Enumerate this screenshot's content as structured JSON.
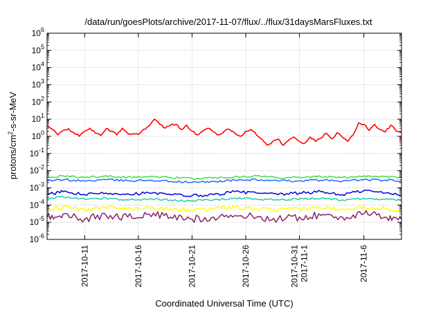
{
  "chart_data": {
    "type": "line",
    "title": "/data/run/goesPlots/archive/2017-11-07/flux/../flux/31daysMarsFluxes.txt",
    "xlabel": "Coordinated Universal Time (UTC)",
    "ylabel": {
      "prefix": "protons/cm",
      "exponent": "2",
      "suffix": "-s-sr-MeV"
    },
    "y_scale": "log",
    "ylim": [
      1e-06,
      1000000.0
    ],
    "xlim": [
      "2017-10-07T12:00",
      "2017-11-09T12:00"
    ],
    "grid": true,
    "legend": "none",
    "y_ticks": [
      {
        "value": 1e-06,
        "base": "10",
        "exp": "-6"
      },
      {
        "value": 1e-05,
        "base": "10",
        "exp": "-5"
      },
      {
        "value": 0.0001,
        "base": "10",
        "exp": "-4"
      },
      {
        "value": 0.001,
        "base": "10",
        "exp": "-3"
      },
      {
        "value": 0.01,
        "base": "10",
        "exp": "-2"
      },
      {
        "value": 0.1,
        "base": "10",
        "exp": "-1"
      },
      {
        "value": 1,
        "base": "10",
        "exp": "0"
      },
      {
        "value": 10.0,
        "base": "10",
        "exp": "1"
      },
      {
        "value": 100.0,
        "base": "10",
        "exp": "2"
      },
      {
        "value": 1000.0,
        "base": "10",
        "exp": "3"
      },
      {
        "value": 10000.0,
        "base": "10",
        "exp": "4"
      },
      {
        "value": 100000.0,
        "base": "10",
        "exp": "5"
      },
      {
        "value": 1000000.0,
        "base": "10",
        "exp": "6"
      }
    ],
    "x_ticks": [
      {
        "value": "2017-10-11",
        "lines": [
          "2017-10-11"
        ]
      },
      {
        "value": "2017-10-16",
        "lines": [
          "2017-10-16"
        ]
      },
      {
        "value": "2017-10-21",
        "lines": [
          "2017-10-21"
        ]
      },
      {
        "value": "2017-10-26",
        "lines": [
          "2017-10-26"
        ]
      },
      {
        "value": "2017-10-31",
        "lines": [
          "2017-10-31",
          "2017-11-1"
        ]
      },
      {
        "value": "2017-11-06",
        "lines": [
          "2017-11-6"
        ]
      }
    ],
    "series": [
      {
        "color": "#ff0000",
        "points": [
          [
            "2017-10-07T12:00",
            4.0
          ],
          [
            "2017-10-08T00:00",
            2.5
          ],
          [
            "2017-10-08T12:00",
            1.2
          ],
          [
            "2017-10-09T00:00",
            2.2
          ],
          [
            "2017-10-09T12:00",
            2.8
          ],
          [
            "2017-10-10T00:00",
            1.6
          ],
          [
            "2017-10-10T12:00",
            1.0
          ],
          [
            "2017-10-11T00:00",
            2.0
          ],
          [
            "2017-10-11T12:00",
            3.0
          ],
          [
            "2017-10-12T00:00",
            1.5
          ],
          [
            "2017-10-12T12:00",
            1.1
          ],
          [
            "2017-10-13T00:00",
            2.8
          ],
          [
            "2017-10-13T12:00",
            2.0
          ],
          [
            "2017-10-14T00:00",
            1.2
          ],
          [
            "2017-10-14T12:00",
            3.0
          ],
          [
            "2017-10-15T00:00",
            1.5
          ],
          [
            "2017-10-15T12:00",
            1.4
          ],
          [
            "2017-10-16T00:00",
            1.3
          ],
          [
            "2017-10-16T12:00",
            2.6
          ],
          [
            "2017-10-17T00:00",
            4.0
          ],
          [
            "2017-10-17T12:00",
            10.0
          ],
          [
            "2017-10-18T00:00",
            5.0
          ],
          [
            "2017-10-18T12:00",
            3.0
          ],
          [
            "2017-10-19T00:00",
            4.5
          ],
          [
            "2017-10-19T12:00",
            5.0
          ],
          [
            "2017-10-20T00:00",
            2.5
          ],
          [
            "2017-10-20T12:00",
            4.5
          ],
          [
            "2017-10-21T00:00",
            2.0
          ],
          [
            "2017-10-21T12:00",
            1.2
          ],
          [
            "2017-10-22T00:00",
            2.0
          ],
          [
            "2017-10-22T12:00",
            3.0
          ],
          [
            "2017-10-23T00:00",
            1.8
          ],
          [
            "2017-10-23T12:00",
            1.2
          ],
          [
            "2017-10-24T00:00",
            2.0
          ],
          [
            "2017-10-24T12:00",
            2.5
          ],
          [
            "2017-10-25T00:00",
            1.5
          ],
          [
            "2017-10-25T12:00",
            1.0
          ],
          [
            "2017-10-26T00:00",
            2.0
          ],
          [
            "2017-10-26T12:00",
            2.5
          ],
          [
            "2017-10-27T00:00",
            1.2
          ],
          [
            "2017-10-27T12:00",
            0.7
          ],
          [
            "2017-10-28T00:00",
            0.3
          ],
          [
            "2017-10-28T12:00",
            0.5
          ],
          [
            "2017-10-29T00:00",
            0.7
          ],
          [
            "2017-10-29T12:00",
            0.3
          ],
          [
            "2017-10-30T00:00",
            0.6
          ],
          [
            "2017-10-30T12:00",
            0.9
          ],
          [
            "2017-10-31T00:00",
            0.5
          ],
          [
            "2017-10-31T12:00",
            0.4
          ],
          [
            "2017-11-01T00:00",
            0.9
          ],
          [
            "2017-11-01T12:00",
            0.5
          ],
          [
            "2017-11-02T00:00",
            0.8
          ],
          [
            "2017-11-02T12:00",
            1.5
          ],
          [
            "2017-11-03T00:00",
            0.7
          ],
          [
            "2017-11-03T12:00",
            1.6
          ],
          [
            "2017-11-04T00:00",
            0.9
          ],
          [
            "2017-11-04T12:00",
            0.5
          ],
          [
            "2017-11-05T00:00",
            1.2
          ],
          [
            "2017-11-05T12:00",
            6.0
          ],
          [
            "2017-11-06T00:00",
            5.0
          ],
          [
            "2017-11-06T12:00",
            2.2
          ],
          [
            "2017-11-07T00:00",
            5.0
          ],
          [
            "2017-11-07T12:00",
            2.5
          ],
          [
            "2017-11-08T00:00",
            1.8
          ],
          [
            "2017-11-08T12:00",
            4.5
          ],
          [
            "2017-11-09T00:00",
            2.0
          ],
          [
            "2017-11-09T12:00",
            1.6
          ]
        ]
      },
      {
        "color": "#44dd44",
        "points": [
          [
            "2017-10-07T12:00",
            0.004
          ],
          [
            "2017-10-09T00:00",
            0.005
          ],
          [
            "2017-10-11T00:00",
            0.004
          ],
          [
            "2017-10-13T00:00",
            0.005
          ],
          [
            "2017-10-15T00:00",
            0.0042
          ],
          [
            "2017-10-17T00:00",
            0.0045
          ],
          [
            "2017-10-19T00:00",
            0.004
          ],
          [
            "2017-10-21T00:00",
            0.0035
          ],
          [
            "2017-10-23T00:00",
            0.0038
          ],
          [
            "2017-10-25T00:00",
            0.0045
          ],
          [
            "2017-10-27T00:00",
            0.005
          ],
          [
            "2017-10-29T00:00",
            0.004
          ],
          [
            "2017-10-31T00:00",
            0.0042
          ],
          [
            "2017-11-02T00:00",
            0.0045
          ],
          [
            "2017-11-04T00:00",
            0.004
          ],
          [
            "2017-11-06T00:00",
            0.005
          ],
          [
            "2017-11-08T00:00",
            0.0045
          ],
          [
            "2017-11-09T12:00",
            0.004
          ]
        ]
      },
      {
        "color": "#2266ff",
        "points": [
          [
            "2017-10-07T12:00",
            0.0025
          ],
          [
            "2017-10-09T00:00",
            0.003
          ],
          [
            "2017-10-11T00:00",
            0.0025
          ],
          [
            "2017-10-13T00:00",
            0.003
          ],
          [
            "2017-10-15T00:00",
            0.0026
          ],
          [
            "2017-10-17T00:00",
            0.0028
          ],
          [
            "2017-10-19T00:00",
            0.0024
          ],
          [
            "2017-10-21T00:00",
            0.0021
          ],
          [
            "2017-10-23T00:00",
            0.0023
          ],
          [
            "2017-10-25T00:00",
            0.0028
          ],
          [
            "2017-10-27T00:00",
            0.003
          ],
          [
            "2017-10-29T00:00",
            0.0025
          ],
          [
            "2017-10-31T00:00",
            0.0026
          ],
          [
            "2017-11-02T00:00",
            0.0028
          ],
          [
            "2017-11-04T00:00",
            0.0025
          ],
          [
            "2017-11-06T00:00",
            0.003
          ],
          [
            "2017-11-08T00:00",
            0.0028
          ],
          [
            "2017-11-09T12:00",
            0.0025
          ]
        ]
      },
      {
        "color": "#0000dd",
        "points": [
          [
            "2017-10-07T12:00",
            0.0004
          ],
          [
            "2017-10-09T00:00",
            0.0006
          ],
          [
            "2017-10-11T00:00",
            0.0004
          ],
          [
            "2017-10-13T00:00",
            0.0005
          ],
          [
            "2017-10-15T00:00",
            0.00045
          ],
          [
            "2017-10-17T00:00",
            0.0005
          ],
          [
            "2017-10-19T00:00",
            0.0004
          ],
          [
            "2017-10-21T00:00",
            0.00035
          ],
          [
            "2017-10-23T00:00",
            0.0004
          ],
          [
            "2017-10-25T00:00",
            0.0006
          ],
          [
            "2017-10-27T00:00",
            0.0005
          ],
          [
            "2017-10-29T00:00",
            0.0004
          ],
          [
            "2017-10-31T00:00",
            0.0005
          ],
          [
            "2017-11-02T00:00",
            0.0006
          ],
          [
            "2017-11-04T00:00",
            0.0004
          ],
          [
            "2017-11-06T00:00",
            0.0007
          ],
          [
            "2017-11-08T00:00",
            0.0005
          ],
          [
            "2017-11-09T12:00",
            0.0004
          ]
        ]
      },
      {
        "color": "#22ccaa",
        "points": [
          [
            "2017-10-07T12:00",
            0.00025
          ],
          [
            "2017-10-09T00:00",
            0.0003
          ],
          [
            "2017-10-11T00:00",
            0.00022
          ],
          [
            "2017-10-13T00:00",
            0.00025
          ],
          [
            "2017-10-15T00:00",
            0.0002
          ],
          [
            "2017-10-17T00:00",
            0.00022
          ],
          [
            "2017-10-19T00:00",
            0.0002
          ],
          [
            "2017-10-21T00:00",
            0.00018
          ],
          [
            "2017-10-23T00:00",
            0.0002
          ],
          [
            "2017-10-25T00:00",
            0.00025
          ],
          [
            "2017-10-27T00:00",
            0.00022
          ],
          [
            "2017-10-29T00:00",
            0.0002
          ],
          [
            "2017-10-31T00:00",
            0.00022
          ],
          [
            "2017-11-02T00:00",
            0.00025
          ],
          [
            "2017-11-04T00:00",
            0.0002
          ],
          [
            "2017-11-06T00:00",
            0.00025
          ],
          [
            "2017-11-08T00:00",
            0.00022
          ],
          [
            "2017-11-09T12:00",
            0.0002
          ]
        ]
      },
      {
        "color": "#ffff00",
        "points": [
          [
            "2017-10-07T12:00",
            6e-05
          ],
          [
            "2017-10-09T00:00",
            8e-05
          ],
          [
            "2017-10-11T00:00",
            5e-05
          ],
          [
            "2017-10-13T00:00",
            7e-05
          ],
          [
            "2017-10-15T00:00",
            6e-05
          ],
          [
            "2017-10-17T00:00",
            7e-05
          ],
          [
            "2017-10-19T00:00",
            6e-05
          ],
          [
            "2017-10-21T00:00",
            5e-05
          ],
          [
            "2017-10-23T00:00",
            6e-05
          ],
          [
            "2017-10-25T00:00",
            7e-05
          ],
          [
            "2017-10-27T00:00",
            6e-05
          ],
          [
            "2017-10-29T00:00",
            5e-05
          ],
          [
            "2017-10-31T00:00",
            6e-05
          ],
          [
            "2017-11-02T00:00",
            7e-05
          ],
          [
            "2017-11-04T00:00",
            6e-05
          ],
          [
            "2017-11-06T00:00",
            8e-05
          ],
          [
            "2017-11-08T00:00",
            6e-05
          ],
          [
            "2017-11-09T12:00",
            5e-05
          ]
        ]
      },
      {
        "color": "#882266",
        "points": [
          [
            "2017-10-07T12:00",
            2e-05
          ],
          [
            "2017-10-09T00:00",
            3e-05
          ],
          [
            "2017-10-11T00:00",
            1.5e-05
          ],
          [
            "2017-10-13T00:00",
            2.5e-05
          ],
          [
            "2017-10-15T00:00",
            2e-05
          ],
          [
            "2017-10-17T00:00",
            3e-05
          ],
          [
            "2017-10-19T00:00",
            2e-05
          ],
          [
            "2017-10-21T00:00",
            1.5e-05
          ],
          [
            "2017-10-23T00:00",
            2e-05
          ],
          [
            "2017-10-25T00:00",
            2.5e-05
          ],
          [
            "2017-10-27T00:00",
            2e-05
          ],
          [
            "2017-10-29T00:00",
            1.5e-05
          ],
          [
            "2017-10-31T00:00",
            2e-05
          ],
          [
            "2017-11-02T00:00",
            2.5e-05
          ],
          [
            "2017-11-04T00:00",
            2e-05
          ],
          [
            "2017-11-06T00:00",
            3e-05
          ],
          [
            "2017-11-08T00:00",
            2e-05
          ],
          [
            "2017-11-09T12:00",
            1.5e-05
          ]
        ]
      }
    ]
  }
}
